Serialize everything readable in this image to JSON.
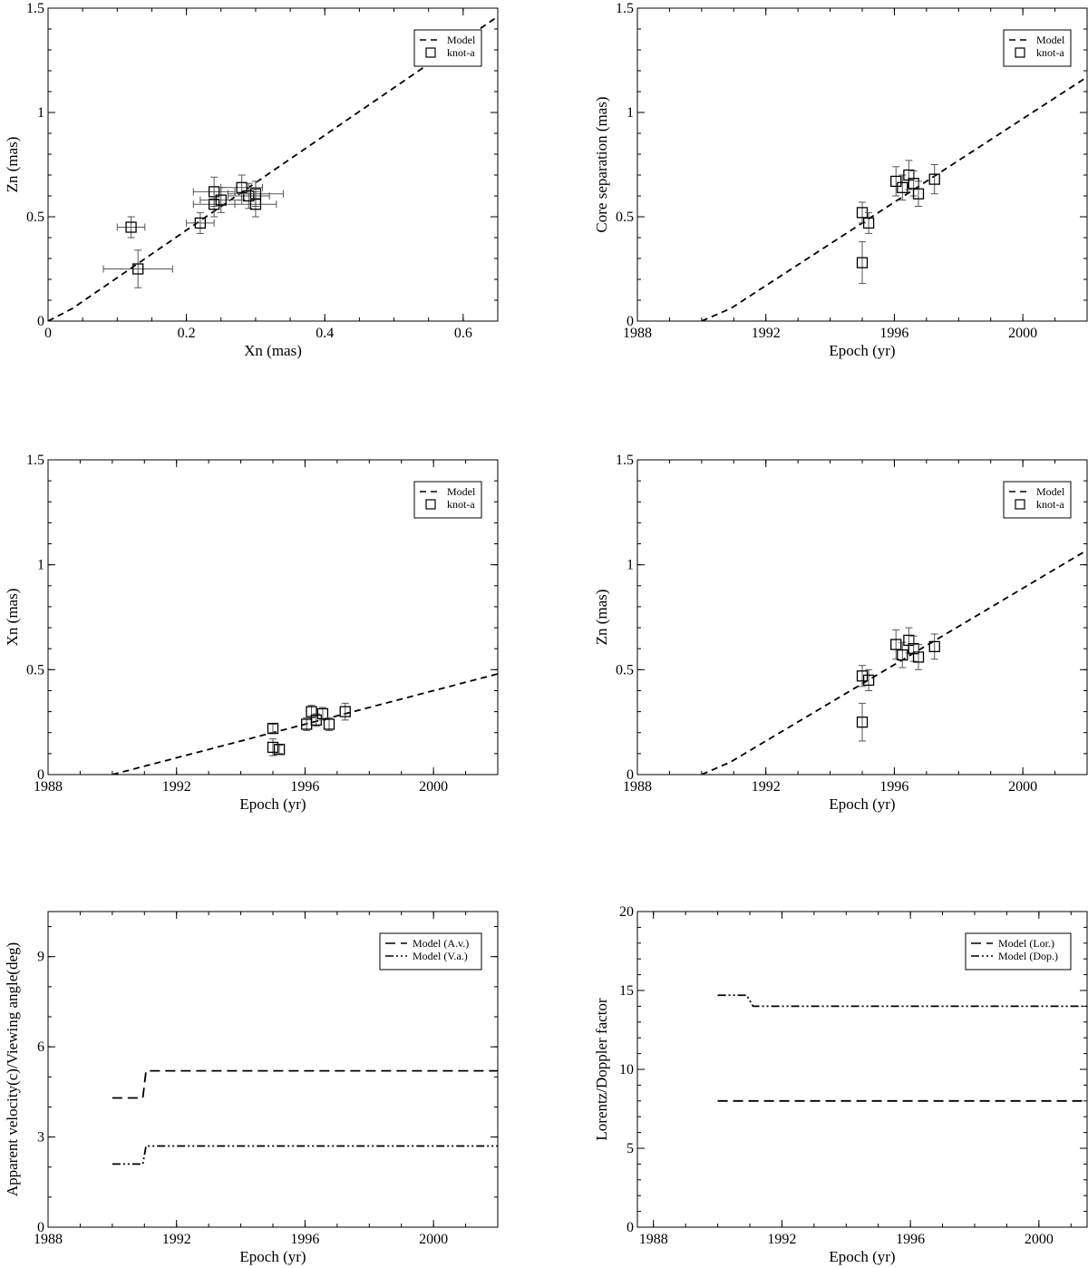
{
  "chart_data": [
    {
      "type": "scatter",
      "title": "",
      "xlabel": "Xn (mas)",
      "ylabel": "Zn (mas)",
      "xlim": [
        0,
        0.65
      ],
      "ylim": [
        0,
        1.5
      ],
      "xticks": [
        0,
        0.2,
        0.4,
        0.6
      ],
      "xtick_labels": [
        "0",
        "0.2",
        "0.4",
        "0.6"
      ],
      "xminor": 0.05,
      "yticks": [
        0,
        0.5,
        1,
        1.5
      ],
      "ytick_labels": [
        "0",
        "0.5",
        "1",
        "1.5"
      ],
      "yminor": 0.1,
      "legend_position": "top-right",
      "series": [
        {
          "name": "Model",
          "kind": "line",
          "dash": "dashed",
          "x": [
            0,
            0.035,
            0.65
          ],
          "y": [
            0,
            0.06,
            1.46
          ]
        },
        {
          "name": "knot-a",
          "kind": "points",
          "points": [
            {
              "x": 0.12,
              "y": 0.45,
              "xerr": 0.02,
              "yerr": 0.05
            },
            {
              "x": 0.13,
              "y": 0.25,
              "xerr": 0.05,
              "yerr": 0.09
            },
            {
              "x": 0.22,
              "y": 0.47,
              "xerr": 0.02,
              "yerr": 0.05
            },
            {
              "x": 0.24,
              "y": 0.62,
              "xerr": 0.03,
              "yerr": 0.07
            },
            {
              "x": 0.24,
              "y": 0.56,
              "xerr": 0.03,
              "yerr": 0.06
            },
            {
              "x": 0.25,
              "y": 0.58,
              "xerr": 0.03,
              "yerr": 0.06
            },
            {
              "x": 0.28,
              "y": 0.64,
              "xerr": 0.03,
              "yerr": 0.06
            },
            {
              "x": 0.29,
              "y": 0.6,
              "xerr": 0.03,
              "yerr": 0.06
            },
            {
              "x": 0.3,
              "y": 0.61,
              "xerr": 0.04,
              "yerr": 0.06
            },
            {
              "x": 0.3,
              "y": 0.56,
              "xerr": 0.03,
              "yerr": 0.06
            }
          ]
        }
      ]
    },
    {
      "type": "scatter",
      "title": "",
      "xlabel": "Epoch (yr)",
      "ylabel": "Core separation (mas)",
      "xlim": [
        1988,
        2002
      ],
      "ylim": [
        0,
        1.5
      ],
      "xticks": [
        1988,
        1992,
        1996,
        2000
      ],
      "xtick_labels": [
        "1988",
        "1992",
        "1996",
        "2000"
      ],
      "xminor": 1,
      "yticks": [
        0,
        0.5,
        1,
        1.5
      ],
      "ytick_labels": [
        "0",
        "0.5",
        "1",
        "1.5"
      ],
      "yminor": 0.1,
      "legend_position": "top-right",
      "series": [
        {
          "name": "Model",
          "kind": "line",
          "dash": "dashed",
          "x": [
            1990,
            1990.9,
            2002
          ],
          "y": [
            0,
            0.06,
            1.17
          ]
        },
        {
          "name": "knot-a",
          "kind": "points",
          "points": [
            {
              "x": 1995.0,
              "y": 0.52,
              "yerr": 0.05
            },
            {
              "x": 1995.0,
              "y": 0.28,
              "yerr": 0.1
            },
            {
              "x": 1995.2,
              "y": 0.47,
              "yerr": 0.05
            },
            {
              "x": 1996.05,
              "y": 0.67,
              "yerr": 0.07
            },
            {
              "x": 1996.25,
              "y": 0.64,
              "yerr": 0.06
            },
            {
              "x": 1996.45,
              "y": 0.7,
              "yerr": 0.07
            },
            {
              "x": 1996.6,
              "y": 0.66,
              "yerr": 0.06
            },
            {
              "x": 1996.75,
              "y": 0.61,
              "yerr": 0.06
            },
            {
              "x": 1997.25,
              "y": 0.68,
              "yerr": 0.07
            }
          ]
        }
      ]
    },
    {
      "type": "scatter",
      "title": "",
      "xlabel": "Epoch (yr)",
      "ylabel": "Xn (mas)",
      "xlim": [
        1988,
        2002
      ],
      "ylim": [
        0,
        1.5
      ],
      "xticks": [
        1988,
        1992,
        1996,
        2000
      ],
      "xtick_labels": [
        "1988",
        "1992",
        "1996",
        "2000"
      ],
      "xminor": 1,
      "yticks": [
        0,
        0.5,
        1,
        1.5
      ],
      "ytick_labels": [
        "0",
        "0.5",
        "1",
        "1.5"
      ],
      "yminor": 0.1,
      "legend_position": "top-right",
      "series": [
        {
          "name": "Model",
          "kind": "line",
          "dash": "dashed",
          "x": [
            1990,
            2002
          ],
          "y": [
            0,
            0.48
          ]
        },
        {
          "name": "knot-a",
          "kind": "points",
          "points": [
            {
              "x": 1995.0,
              "y": 0.22,
              "yerr": 0.02
            },
            {
              "x": 1995.0,
              "y": 0.13,
              "yerr": 0.04
            },
            {
              "x": 1995.2,
              "y": 0.12,
              "yerr": 0.02
            },
            {
              "x": 1996.05,
              "y": 0.24,
              "yerr": 0.03
            },
            {
              "x": 1996.2,
              "y": 0.3,
              "yerr": 0.03
            },
            {
              "x": 1996.35,
              "y": 0.26,
              "yerr": 0.03
            },
            {
              "x": 1996.55,
              "y": 0.29,
              "yerr": 0.03
            },
            {
              "x": 1996.75,
              "y": 0.24,
              "yerr": 0.03
            },
            {
              "x": 1997.25,
              "y": 0.3,
              "yerr": 0.04
            }
          ]
        }
      ]
    },
    {
      "type": "scatter",
      "title": "",
      "xlabel": "Epoch (yr)",
      "ylabel": "Zn (mas)",
      "xlim": [
        1988,
        2002
      ],
      "ylim": [
        0,
        1.5
      ],
      "xticks": [
        1988,
        1992,
        1996,
        2000
      ],
      "xtick_labels": [
        "1988",
        "1992",
        "1996",
        "2000"
      ],
      "xminor": 1,
      "yticks": [
        0,
        0.5,
        1,
        1.5
      ],
      "ytick_labels": [
        "0",
        "0.5",
        "1",
        "1.5"
      ],
      "yminor": 0.1,
      "legend_position": "top-right",
      "series": [
        {
          "name": "Model",
          "kind": "line",
          "dash": "dashed",
          "x": [
            1990,
            1990.9,
            2002
          ],
          "y": [
            0,
            0.06,
            1.07
          ]
        },
        {
          "name": "knot-a",
          "kind": "points",
          "points": [
            {
              "x": 1995.0,
              "y": 0.47,
              "yerr": 0.05
            },
            {
              "x": 1995.0,
              "y": 0.25,
              "yerr": 0.09
            },
            {
              "x": 1995.2,
              "y": 0.45,
              "yerr": 0.05
            },
            {
              "x": 1996.05,
              "y": 0.62,
              "yerr": 0.07
            },
            {
              "x": 1996.25,
              "y": 0.57,
              "yerr": 0.06
            },
            {
              "x": 1996.45,
              "y": 0.64,
              "yerr": 0.06
            },
            {
              "x": 1996.6,
              "y": 0.6,
              "yerr": 0.06
            },
            {
              "x": 1996.75,
              "y": 0.56,
              "yerr": 0.06
            },
            {
              "x": 1997.25,
              "y": 0.61,
              "yerr": 0.06
            }
          ]
        }
      ]
    },
    {
      "type": "line",
      "title": "",
      "xlabel": "Epoch (yr)",
      "ylabel": "Apparent velocity(c)/Viewing angle(deg)",
      "xlim": [
        1988,
        2002
      ],
      "ylim": [
        0,
        10.5
      ],
      "xticks": [
        1988,
        1992,
        1996,
        2000
      ],
      "xtick_labels": [
        "1988",
        "1992",
        "1996",
        "2000"
      ],
      "xminor": 1,
      "yticks": [
        0,
        3,
        6,
        9
      ],
      "ytick_labels": [
        "0",
        "3",
        "6",
        "9"
      ],
      "yminor": 1,
      "legend_position": "top-right",
      "series": [
        {
          "name": "Model (A.v.)",
          "kind": "line",
          "dash": "longdash",
          "x": [
            1990,
            1990.95,
            1991.05,
            2002
          ],
          "y": [
            4.3,
            4.3,
            5.2,
            5.2
          ]
        },
        {
          "name": "Model (V.a.)",
          "kind": "line",
          "dash": "dashdotdot",
          "x": [
            1990,
            1990.95,
            1991.05,
            2002
          ],
          "y": [
            2.1,
            2.1,
            2.7,
            2.7
          ]
        }
      ]
    },
    {
      "type": "line",
      "title": "",
      "xlabel": "Epoch (yr)",
      "ylabel": "Lorentz/Doppler factor",
      "xlim": [
        1987.5,
        2001.5
      ],
      "ylim": [
        0,
        20
      ],
      "xticks": [
        1988,
        1992,
        1996,
        2000
      ],
      "xtick_labels": [
        "1988",
        "1992",
        "1996",
        "2000"
      ],
      "xminor": 1,
      "yticks": [
        0,
        5,
        10,
        15,
        20
      ],
      "ytick_labels": [
        "0",
        "5",
        "10",
        "15",
        "20"
      ],
      "yminor": 1,
      "legend_position": "top-right",
      "series": [
        {
          "name": "Model (Lor.)",
          "kind": "line",
          "dash": "longdash",
          "x": [
            1990,
            2001.5
          ],
          "y": [
            8.0,
            8.0
          ]
        },
        {
          "name": "Model (Dop.)",
          "kind": "line",
          "dash": "dashdotdot",
          "x": [
            1990,
            1990.9,
            1991.1,
            2001.5
          ],
          "y": [
            14.7,
            14.7,
            14.0,
            14.0
          ]
        }
      ]
    }
  ]
}
